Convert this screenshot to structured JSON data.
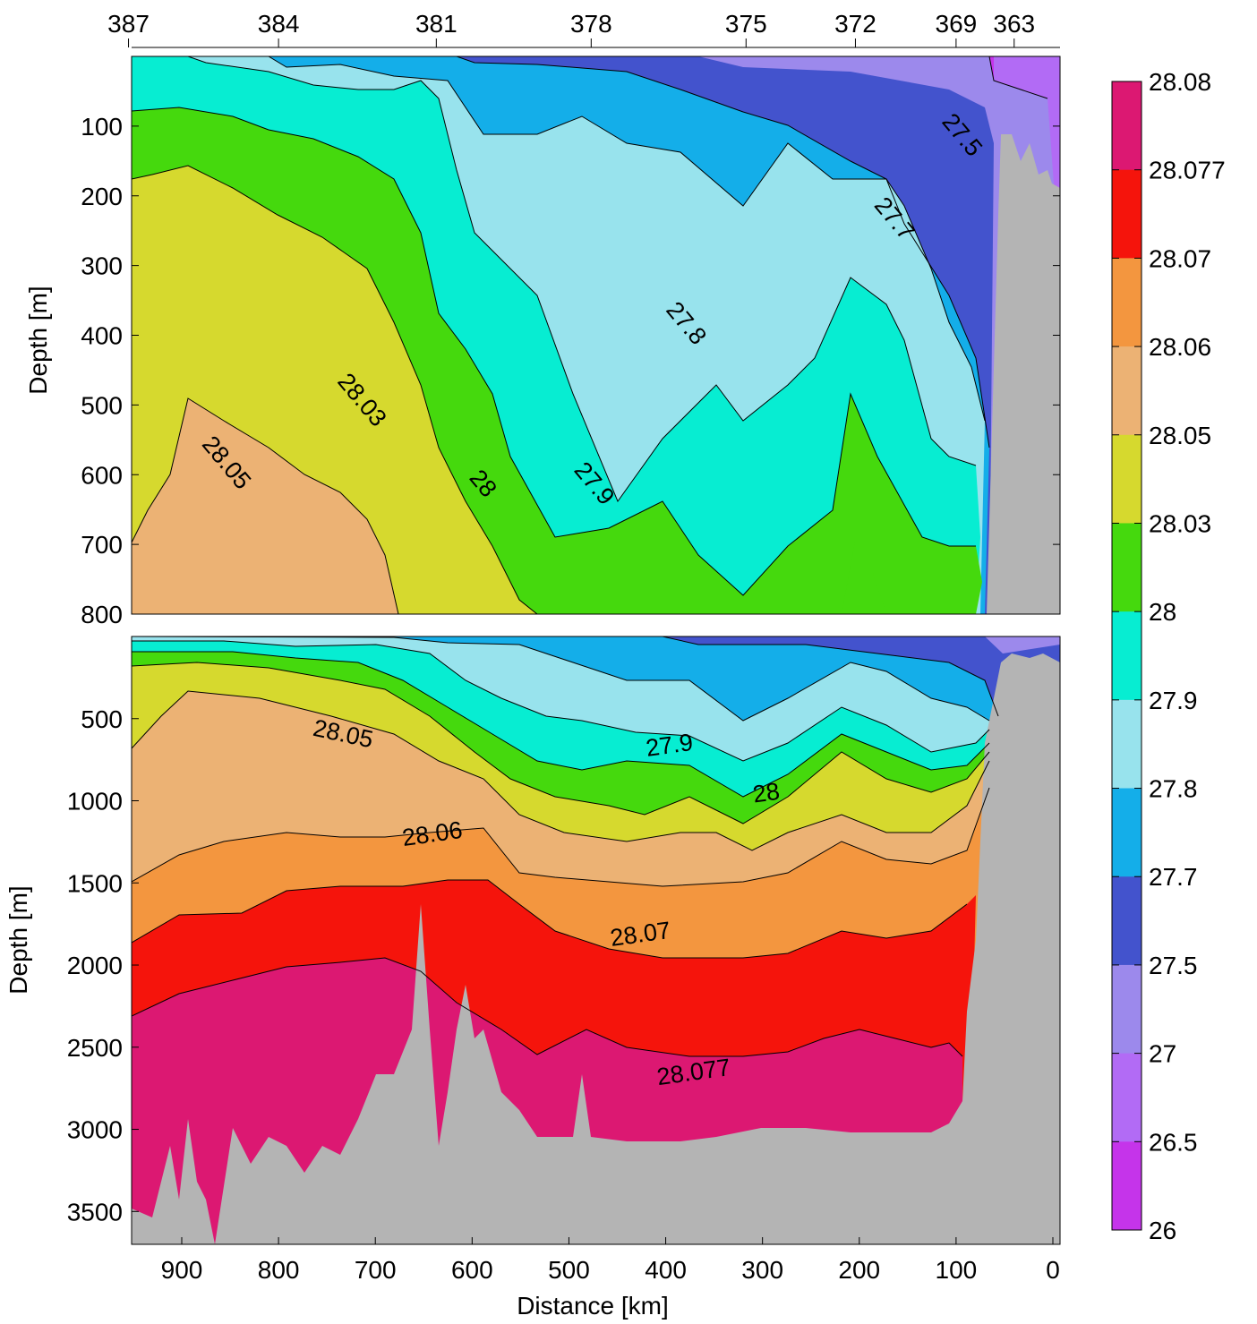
{
  "chart_data": [
    {
      "type": "contour",
      "panel": "upper",
      "title": "",
      "xlabel": "",
      "ylabel": "Depth [m]",
      "x_top_label": "",
      "ylim": [
        800,
        0
      ],
      "yticks": [
        "100",
        "200",
        "300",
        "400",
        "500",
        "600",
        "700",
        "800"
      ],
      "yticks_values": [
        100,
        200,
        300,
        400,
        500,
        600,
        700,
        800
      ],
      "top_station_labels": [
        "387",
        "384",
        "381",
        "378",
        "375",
        "372",
        "369",
        "363"
      ],
      "top_station_km": [
        955,
        800,
        637,
        477,
        317,
        204,
        100,
        40
      ],
      "contour_labels": [
        {
          "text": "27.5",
          "x_km": 100,
          "depth": 120
        },
        {
          "text": "27.7",
          "x_km": 170,
          "depth": 240
        },
        {
          "text": "27.8",
          "x_km": 385,
          "depth": 390
        },
        {
          "text": "28.03",
          "x_km": 720,
          "depth": 500
        },
        {
          "text": "28.05",
          "x_km": 860,
          "depth": 590
        },
        {
          "text": "28",
          "x_km": 595,
          "depth": 620
        },
        {
          "text": "27.9",
          "x_km": 480,
          "depth": 620
        }
      ]
    },
    {
      "type": "contour",
      "panel": "lower",
      "title": "",
      "xlabel": "Distance [km]",
      "ylabel": "Depth [m]",
      "xlim": [
        960,
        -8
      ],
      "ylim": [
        3700,
        0
      ],
      "xticks": [
        "900",
        "800",
        "700",
        "600",
        "500",
        "400",
        "300",
        "200",
        "100",
        "0"
      ],
      "xticks_values": [
        900,
        800,
        700,
        600,
        500,
        400,
        300,
        200,
        100,
        0
      ],
      "yticks": [
        "500",
        "1000",
        "1500",
        "2000",
        "2500",
        "3000",
        "3500"
      ],
      "yticks_values": [
        500,
        1000,
        1500,
        2000,
        2500,
        3000,
        3500
      ],
      "contour_labels": [
        {
          "text": "28.05",
          "x_km": 735,
          "depth": 640
        },
        {
          "text": "27.9",
          "x_km": 395,
          "depth": 710
        },
        {
          "text": "28",
          "x_km": 295,
          "depth": 1000
        },
        {
          "text": "28.06",
          "x_km": 640,
          "depth": 1250
        },
        {
          "text": "28.07",
          "x_km": 425,
          "depth": 1860
        },
        {
          "text": "28.077",
          "x_km": 370,
          "depth": 2700
        }
      ]
    },
    {
      "type": "colorbar",
      "levels": [
        "28.08",
        "28.077",
        "28.07",
        "28.06",
        "28.05",
        "28.03",
        "28",
        "27.9",
        "27.8",
        "27.7",
        "27.5",
        "27",
        "26.5",
        "26"
      ],
      "colors": [
        "#dc1872",
        "#f5140c",
        "#f3963f",
        "#ecb274",
        "#d6d92e",
        "#45d90d",
        "#07edd2",
        "#98e3ed",
        "#14aee9",
        "#4353cd",
        "#9c89ec",
        "#b26bf5",
        "#c534ea"
      ],
      "bathymetry_color": "#b4b4b4"
    }
  ]
}
